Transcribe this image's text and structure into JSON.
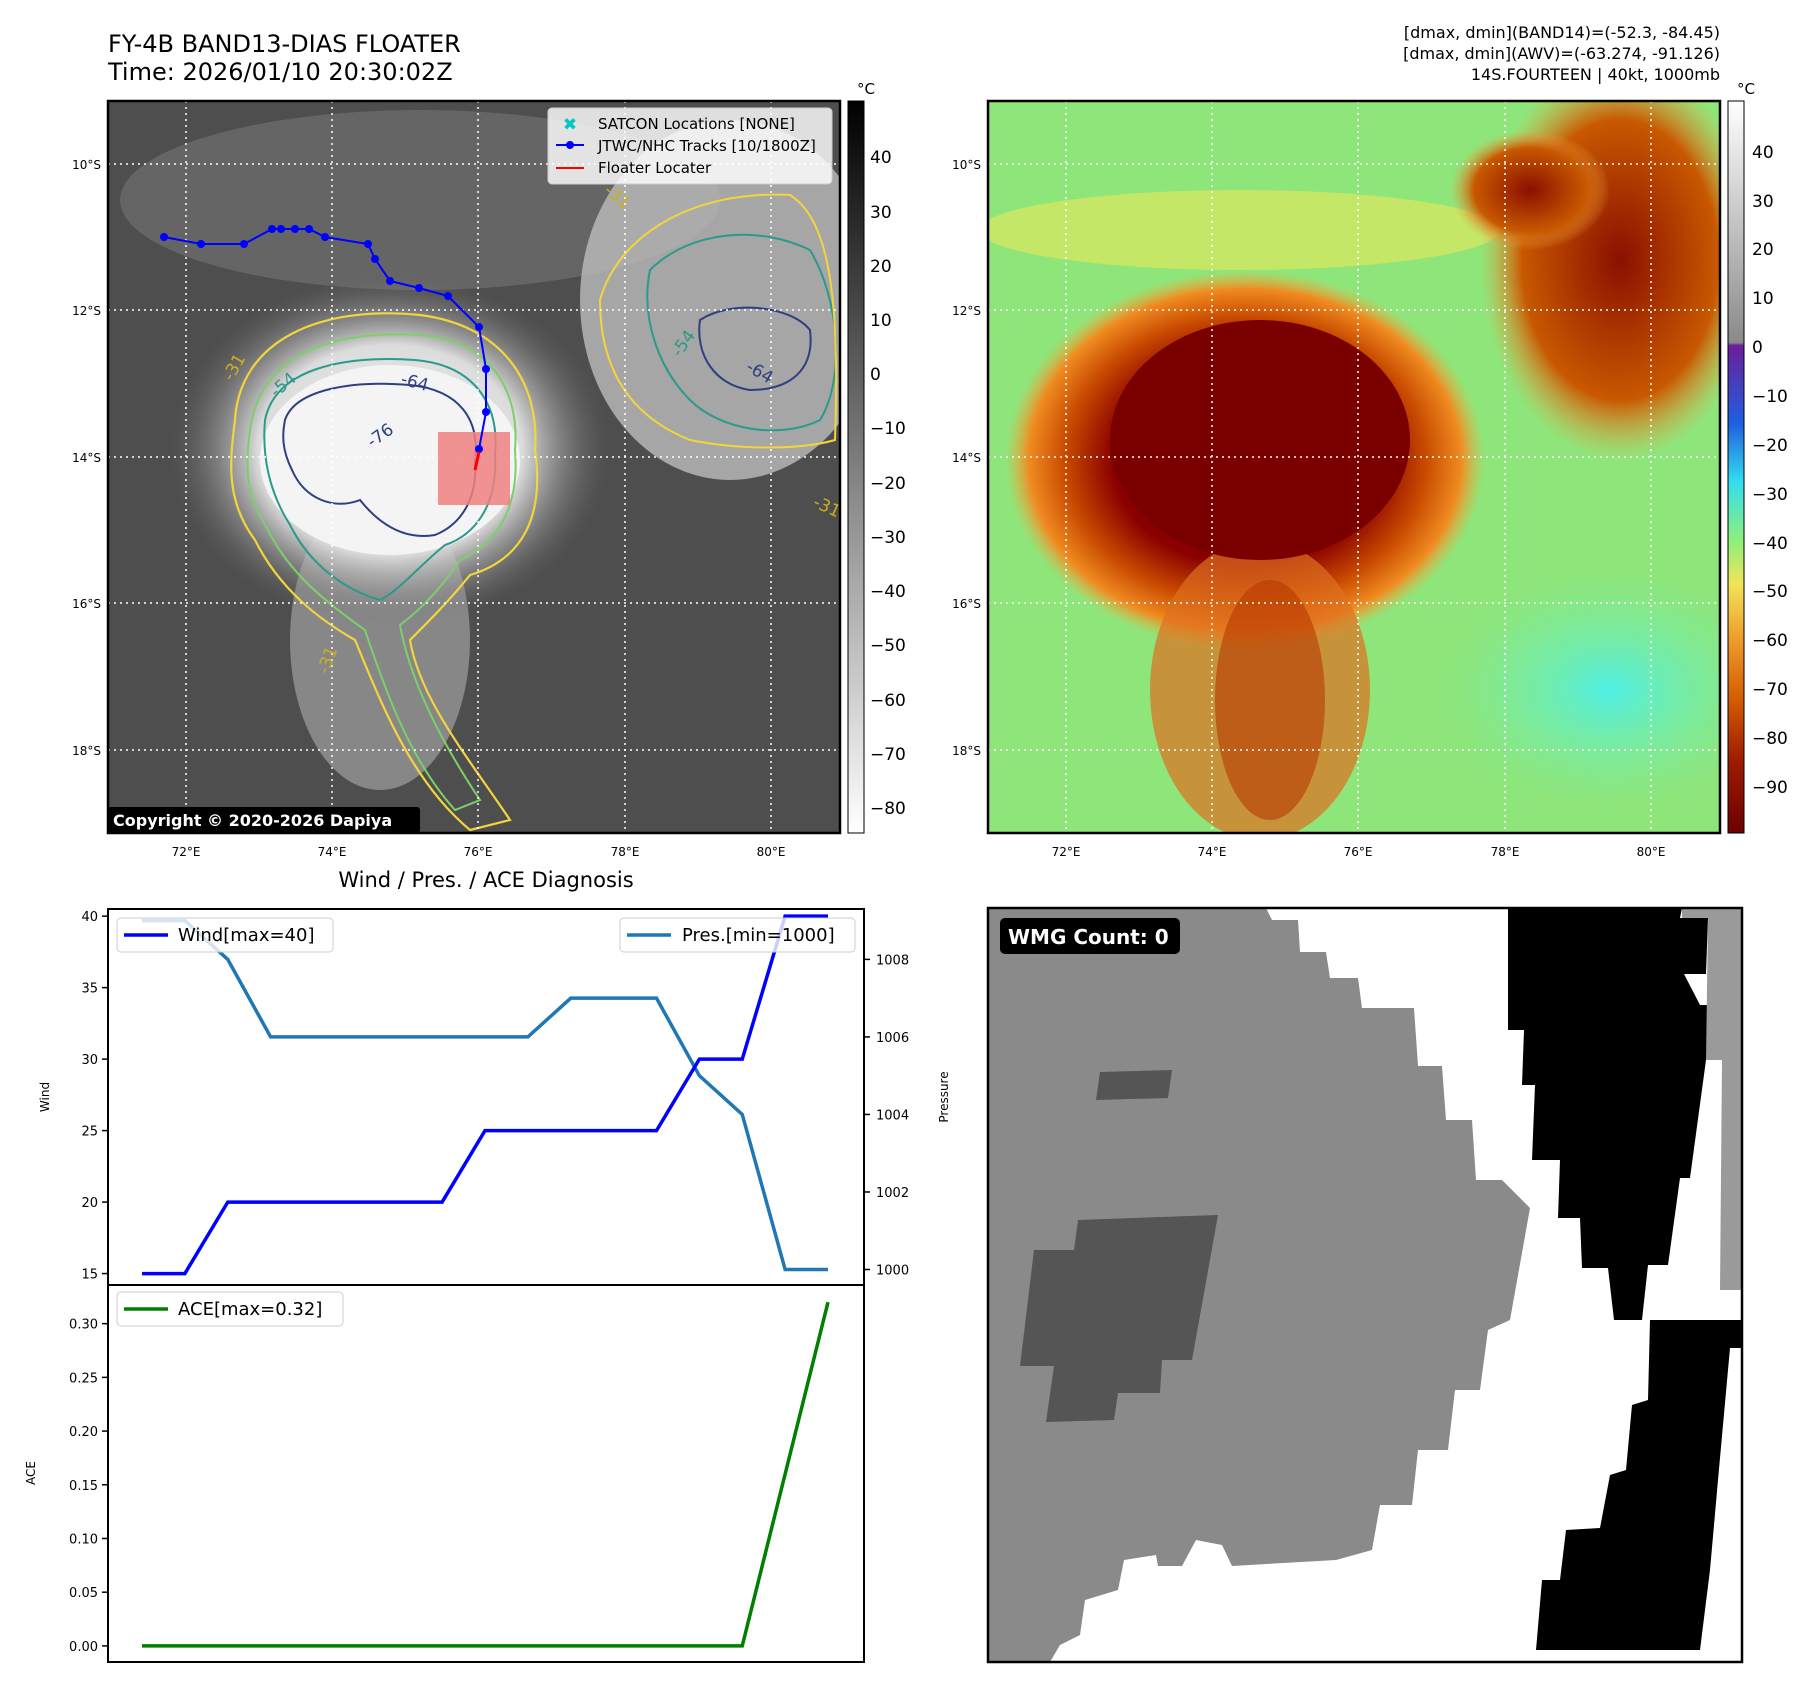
{
  "header": {
    "title_line1": "FY-4B BAND13-DIAS FLOATER",
    "title_line2": "Time: 2026/01/10 20:30:02Z",
    "info_line1": "[dmax, dmin](BAND14)=(-52.3, -84.45)",
    "info_line2": "[dmax, dmin](AWV)=(-63.274, -91.126)",
    "info_line3": "14S.FOURTEEN | 40kt, 1000mb"
  },
  "ir_panel": {
    "lat_labels": [
      "10°S",
      "12°S",
      "14°S",
      "16°S",
      "18°S"
    ],
    "lon_labels": [
      "72°E",
      "74°E",
      "76°E",
      "78°E",
      "80°E"
    ],
    "legend": [
      "SATCON Locations [NONE]",
      "JTWC/NHC Tracks [10/1800Z]",
      "Floater Locater"
    ],
    "contour_labels": [
      "-31",
      "-54",
      "-64",
      "-76",
      "-54",
      "-64",
      "-31",
      "-31",
      "-31"
    ],
    "copyright": "Copyright © 2020-2026 Dapiya",
    "track_color": "#0000ff",
    "locator_color": "#ff0000",
    "satcon_color": "#00c8c8",
    "colorbar": {
      "unit": "°C",
      "ticks": [
        "40",
        "30",
        "20",
        "10",
        "0",
        "−10",
        "−20",
        "−30",
        "−40",
        "−50",
        "−60",
        "−70",
        "−80"
      ]
    }
  },
  "wv_panel": {
    "lat_labels": [
      "10°S",
      "12°S",
      "14°S",
      "16°S",
      "18°S"
    ],
    "lon_labels": [
      "72°E",
      "74°E",
      "76°E",
      "78°E",
      "80°E"
    ],
    "colorbar": {
      "unit": "°C",
      "ticks": [
        "40",
        "30",
        "20",
        "10",
        "0",
        "−10",
        "−20",
        "−30",
        "−40",
        "−50",
        "−60",
        "−70",
        "−80",
        "−90"
      ]
    }
  },
  "chart_data": [
    {
      "type": "line",
      "title": "Wind / Pres. / ACE Diagnosis",
      "ylabel": "Wind",
      "ylabel_right": "Pressure",
      "ylim": [
        14.2,
        40.5
      ],
      "ylim_right": [
        999.6,
        1009.3
      ],
      "y_ticks": [
        15,
        20,
        25,
        30,
        35,
        40
      ],
      "y_ticks_right": [
        1000,
        1002,
        1004,
        1006,
        1008
      ],
      "x": [
        0,
        1,
        2,
        3,
        4,
        5,
        6,
        7,
        8,
        9,
        10,
        11,
        12,
        13,
        14,
        15,
        16
      ],
      "series": [
        {
          "name": "Wind[max=40]",
          "axis": "left",
          "color": "#0000ff",
          "values": [
            15,
            15,
            20,
            20,
            20,
            20,
            20,
            20,
            25,
            25,
            25,
            25,
            25,
            30,
            30,
            40,
            40
          ]
        },
        {
          "name": "Pres.[min=1000]",
          "axis": "right",
          "color": "#1f77b4",
          "values": [
            1009,
            1009,
            1008,
            1006,
            1006,
            1006,
            1006,
            1006,
            1006,
            1006,
            1007,
            1007,
            1007,
            1005,
            1004,
            1000,
            1000
          ]
        }
      ]
    },
    {
      "type": "line",
      "ylabel": "ACE",
      "ylim": [
        -0.015,
        0.336
      ],
      "y_ticks": [
        "0.00",
        "0.05",
        "0.10",
        "0.15",
        "0.20",
        "0.25",
        "0.30"
      ],
      "x": [
        0,
        1,
        2,
        3,
        4,
        5,
        6,
        7,
        8,
        9,
        10,
        11,
        12,
        13,
        14,
        15,
        16
      ],
      "series": [
        {
          "name": "ACE[max=0.32]",
          "color": "#008000",
          "values": [
            0,
            0,
            0,
            0,
            0,
            0,
            0,
            0,
            0,
            0,
            0,
            0,
            0,
            0,
            0,
            0.16,
            0.32
          ]
        }
      ]
    }
  ],
  "wmg_panel": {
    "label": "WMG Count: 0"
  }
}
